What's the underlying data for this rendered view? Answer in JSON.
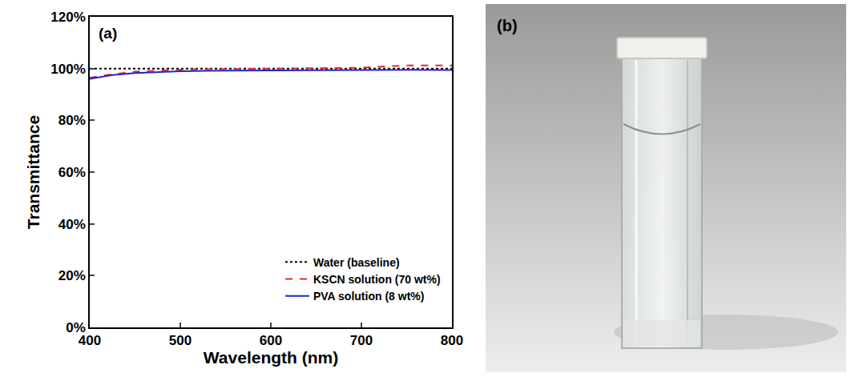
{
  "chart_data": {
    "type": "line",
    "annotation": "(a)",
    "x_label": "Wavelength (nm)",
    "y_label": "Transmittance",
    "x": [
      400,
      425,
      450,
      500,
      550,
      600,
      650,
      700,
      725,
      750,
      800
    ],
    "series": [
      {
        "name": "Water (baseline)",
        "color": "#000000",
        "line_style": "dotted",
        "values": [
          100,
          100,
          100,
          100,
          100,
          100,
          100,
          100,
          100,
          100,
          100
        ]
      },
      {
        "name": "KSCN solution (70 wt%)",
        "color": "#e8262b",
        "line_style": "dashed",
        "values": [
          96.5,
          97.8,
          98.8,
          99.6,
          99.8,
          100,
          100.2,
          100.3,
          100.8,
          101.2,
          101.2
        ]
      },
      {
        "name": "PVA solution (8 wt%)",
        "color": "#2424c8",
        "line_style": "solid",
        "values": [
          96,
          97.5,
          98.3,
          99,
          99.2,
          99.3,
          99.4,
          99.5,
          99.5,
          99.5,
          99.4
        ]
      }
    ],
    "xlim": [
      400,
      800
    ],
    "xticks": [
      400,
      500,
      600,
      700,
      800
    ],
    "ylim": [
      0,
      120
    ],
    "yticks": [
      {
        "value": 0,
        "label": "0%"
      },
      {
        "value": 20,
        "label": "20%"
      },
      {
        "value": 40,
        "label": "40%"
      },
      {
        "value": 60,
        "label": "60%"
      },
      {
        "value": 80,
        "label": "80%"
      },
      {
        "value": 100,
        "label": "100%"
      },
      {
        "value": 120,
        "label": "120%"
      }
    ],
    "grid": false,
    "legend": "bottom right"
  },
  "panel_b": {
    "label": "(b)"
  }
}
